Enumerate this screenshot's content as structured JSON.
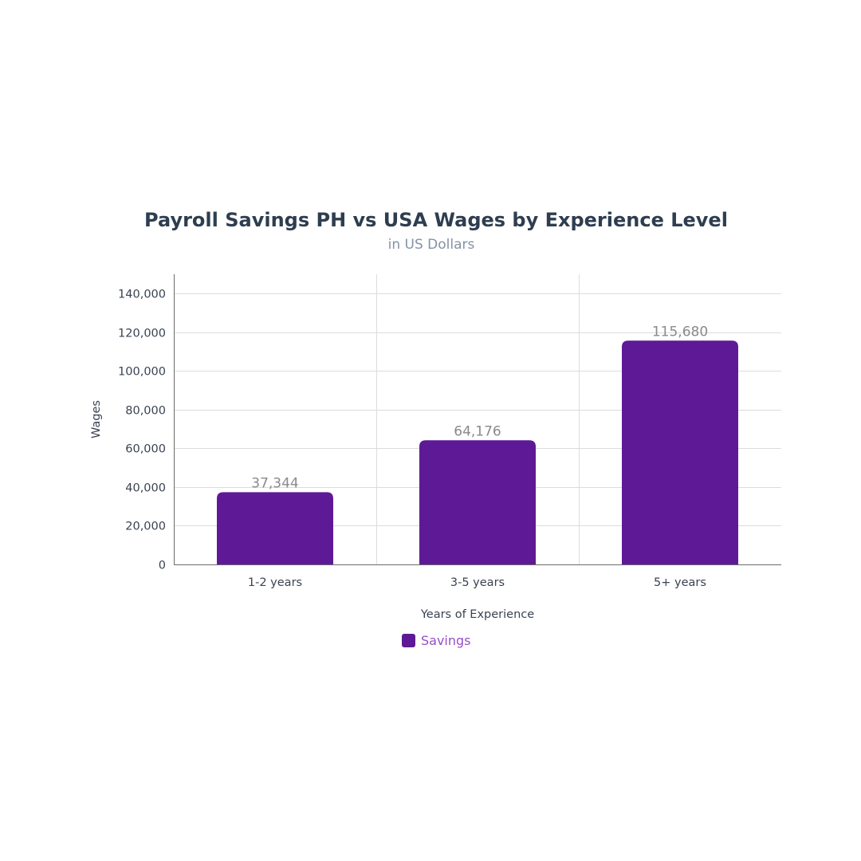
{
  "chart_data": {
    "type": "bar",
    "title": "Payroll Savings PH vs USA Wages by Experience Level",
    "subtitle": "in US Dollars",
    "xlabel": "Years of Experience",
    "ylabel": "Wages",
    "categories": [
      "1-2 years",
      "3-5 years",
      "5+ years"
    ],
    "series": [
      {
        "name": "Savings",
        "values": [
          37344,
          64176,
          115680
        ],
        "value_labels": [
          "37,344",
          "64,176",
          "115,680"
        ],
        "color": "#5e1a96"
      }
    ],
    "ylim": [
      0,
      150000
    ],
    "yticks": [
      0,
      20000,
      40000,
      60000,
      80000,
      100000,
      120000,
      140000
    ],
    "ytick_labels": [
      "0",
      "20,000",
      "40,000",
      "60,000",
      "80,000",
      "100,000",
      "120,000",
      "140,000"
    ],
    "grid": true,
    "legend_position": "bottom-center"
  }
}
